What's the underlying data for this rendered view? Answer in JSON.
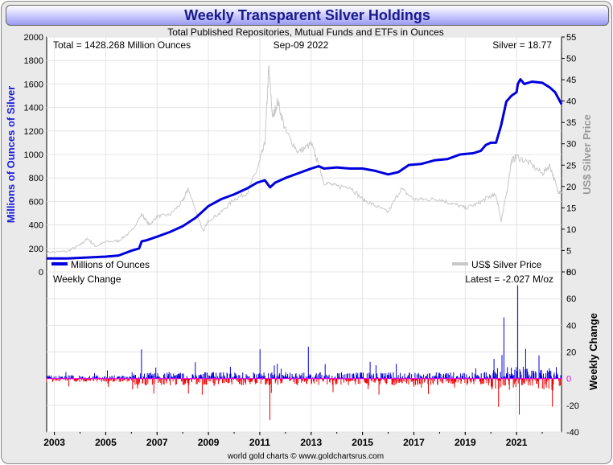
{
  "title": "Weekly Transparent Silver Holdings",
  "subtitle": "Total Published Repositories, Mutual Funds and ETFs in Ounces",
  "total_label": "Total = 1428.268 Million Ounces",
  "date_label": "Sep-09  2022",
  "silver_label": "Silver = 18.77",
  "weekly_change_label": "Weekly Change",
  "latest_label": "Latest = -2.027 M/oz",
  "footer": "world gold charts © www.goldchartsrus.com",
  "colors": {
    "holdings": "#0000dd",
    "price": "#c8c8c8",
    "gain": "#0000dd",
    "loss": "#ee0000",
    "zero_line": "#ee00ee"
  },
  "chart_data": [
    {
      "type": "line",
      "ylabel": "Millions of Ounces of Silver",
      "y2label": "US$ Silver Price",
      "ylim": [
        0,
        2000
      ],
      "y2lim": [
        0,
        55
      ],
      "xlim": [
        2002.7,
        2022.75
      ],
      "yticks": [
        "0",
        "200",
        "400",
        "600",
        "800",
        "1000",
        "1200",
        "1400",
        "1600",
        "1800",
        "2000"
      ],
      "y2ticks": [
        "0",
        "5",
        "10",
        "15",
        "20",
        "25",
        "30",
        "35",
        "40",
        "45",
        "50",
        "55"
      ],
      "xticks": [
        "2003",
        "2005",
        "2007",
        "2009",
        "2011",
        "2013",
        "2015",
        "2017",
        "2019",
        "2021"
      ],
      "legend": "bottom",
      "series": [
        {
          "name": "Millions of Ounces",
          "axis": "left",
          "x": [
            2002.7,
            2003.5,
            2004.0,
            2004.5,
            2005.0,
            2005.5,
            2006.0,
            2006.3,
            2006.4,
            2006.6,
            2007.0,
            2007.5,
            2008.0,
            2008.5,
            2009.0,
            2009.5,
            2010.0,
            2010.5,
            2010.9,
            2011.2,
            2011.4,
            2011.6,
            2012.0,
            2012.5,
            2013.0,
            2013.3,
            2013.5,
            2014.0,
            2014.5,
            2015.0,
            2015.5,
            2016.0,
            2016.4,
            2016.8,
            2017.3,
            2017.8,
            2018.3,
            2018.8,
            2019.3,
            2019.6,
            2019.8,
            2020.0,
            2020.2,
            2020.4,
            2020.6,
            2020.8,
            2021.0,
            2021.05,
            2021.15,
            2021.3,
            2021.6,
            2022.0,
            2022.3,
            2022.5,
            2022.75
          ],
          "values": [
            115,
            115,
            120,
            125,
            130,
            140,
            180,
            200,
            260,
            270,
            300,
            340,
            390,
            460,
            560,
            620,
            660,
            710,
            760,
            780,
            720,
            760,
            800,
            840,
            880,
            900,
            880,
            890,
            880,
            880,
            860,
            830,
            850,
            910,
            920,
            950,
            960,
            1000,
            1010,
            1030,
            1080,
            1100,
            1100,
            1250,
            1450,
            1500,
            1530,
            1600,
            1640,
            1600,
            1620,
            1610,
            1570,
            1530,
            1428
          ]
        },
        {
          "name": "US$ Silver Price",
          "axis": "right",
          "x": [
            2002.7,
            2003.5,
            2004.0,
            2004.3,
            2004.6,
            2005.0,
            2005.5,
            2006.0,
            2006.4,
            2006.7,
            2007.0,
            2007.5,
            2008.0,
            2008.2,
            2008.8,
            2009.0,
            2009.5,
            2010.0,
            2010.5,
            2010.9,
            2011.2,
            2011.35,
            2011.5,
            2011.7,
            2012.0,
            2012.5,
            2013.0,
            2013.3,
            2013.5,
            2014.0,
            2014.5,
            2015.0,
            2015.5,
            2016.0,
            2016.5,
            2017.0,
            2017.5,
            2018.0,
            2018.5,
            2019.0,
            2019.5,
            2019.9,
            2020.2,
            2020.4,
            2020.6,
            2020.8,
            2021.0,
            2021.5,
            2022.0,
            2022.3,
            2022.6,
            2022.75
          ],
          "values": [
            4.6,
            4.8,
            6.3,
            7.8,
            6.0,
            7.0,
            7.3,
            9.5,
            13.5,
            11.0,
            13.0,
            13.4,
            16.5,
            19.5,
            9.5,
            12.0,
            14.0,
            17.0,
            18.5,
            24.0,
            30.0,
            48.0,
            36.0,
            40.0,
            33.0,
            28.0,
            30.0,
            25.0,
            21.0,
            20.0,
            20.0,
            17.0,
            15.5,
            14.0,
            19.5,
            17.0,
            17.0,
            17.0,
            16.0,
            15.0,
            16.0,
            17.5,
            18.0,
            12.0,
            18.0,
            26.0,
            27.0,
            25.5,
            23.0,
            25.0,
            19.0,
            18.77
          ]
        }
      ]
    },
    {
      "type": "bar",
      "ylabel": "Weekly Change",
      "ylim": [
        -40,
        80
      ],
      "yticks": [
        "-40",
        "-20",
        "0",
        "20",
        "40",
        "60",
        "80"
      ],
      "xlim": [
        2002.7,
        2022.75
      ],
      "notable_values": [
        {
          "x": 2006.4,
          "value": 22
        },
        {
          "x": 2011.4,
          "value": -31
        },
        {
          "x": 2011.0,
          "value": 22
        },
        {
          "x": 2012.9,
          "value": 24
        },
        {
          "x": 2020.5,
          "value": 46
        },
        {
          "x": 2021.05,
          "value": 70
        },
        {
          "x": 2021.1,
          "value": -27
        },
        {
          "x": 2022.4,
          "value": -21
        }
      ],
      "latest_value": -2.027
    }
  ]
}
